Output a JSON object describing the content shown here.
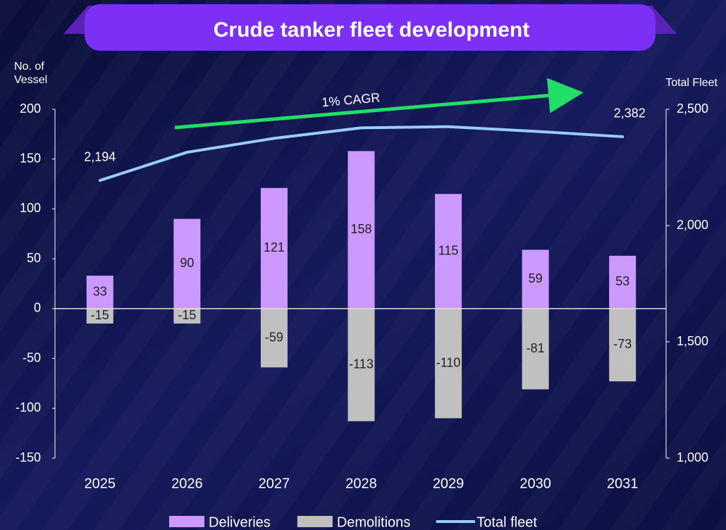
{
  "chart_data": {
    "type": "bar-line",
    "title": "Crude tanker fleet development",
    "y_label": [
      "No. of",
      "Vessel"
    ],
    "y2_label": "Total Fleet",
    "annotation": "1% CAGR",
    "categories": [
      "2025",
      "2026",
      "2027",
      "2028",
      "2029",
      "2030",
      "2031"
    ],
    "series": [
      {
        "name": "Deliveries",
        "type": "bar",
        "color": "#cc99ff",
        "values": [
          33,
          90,
          121,
          158,
          115,
          59,
          53
        ]
      },
      {
        "name": "Demolitions",
        "type": "bar",
        "color": "#c0c0c0",
        "values": [
          -15,
          -15,
          -59,
          -113,
          -110,
          -81,
          -73
        ]
      },
      {
        "name": "Total fleet",
        "type": "line",
        "axis": "y2",
        "color": "#99ccff",
        "values": [
          2194,
          2315,
          2375,
          2420,
          2425,
          2405,
          2382
        ],
        "value_labels": [
          "2,194",
          null,
          null,
          null,
          null,
          null,
          "2,382"
        ]
      }
    ],
    "ylim": [
      -150,
      200
    ],
    "yticks": [
      -150,
      -100,
      -50,
      0,
      50,
      100,
      150,
      200
    ],
    "y2lim": [
      1000,
      2500
    ],
    "y2ticks": [
      {
        "value": 1000,
        "label": "1,000"
      },
      {
        "value": 1500,
        "label": "1,500"
      },
      {
        "value": 2000,
        "label": "2,000"
      },
      {
        "value": 2500,
        "label": "2,500"
      }
    ],
    "legend": "bottom"
  }
}
